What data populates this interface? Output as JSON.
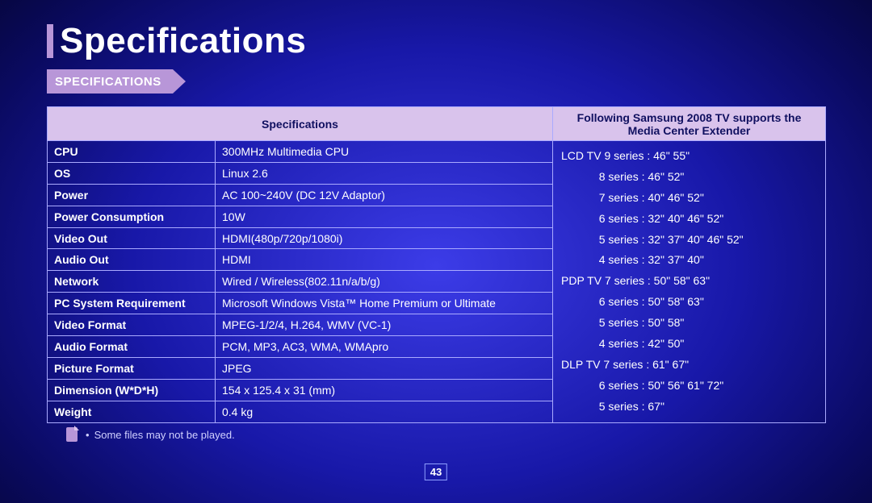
{
  "page": {
    "title": "Specifications",
    "ribbon": "SPECIFICATIONS",
    "footnote": "Some files may not be played.",
    "page_number": "43"
  },
  "headers": {
    "spec": "Specifications",
    "tv": "Following Samsung 2008 TV supports the Media Center Extender"
  },
  "specs": [
    {
      "label": "CPU",
      "value": "300MHz Multimedia CPU"
    },
    {
      "label": "OS",
      "value": "Linux 2.6"
    },
    {
      "label": "Power",
      "value": "AC 100~240V (DC 12V Adaptor)"
    },
    {
      "label": "Power Consumption",
      "value": "10W"
    },
    {
      "label": "Video Out",
      "value": "HDMI(480p/720p/1080i)"
    },
    {
      "label": "Audio Out",
      "value": "HDMI"
    },
    {
      "label": "Network",
      "value": "Wired / Wireless(802.11n/a/b/g)"
    },
    {
      "label": "PC System Requirement",
      "value": "Microsoft Windows Vista™ Home Premium or Ultimate"
    },
    {
      "label": "Video Format",
      "value": "MPEG-1/2/4, H.264, WMV (VC-1)"
    },
    {
      "label": "Audio Format",
      "value": "PCM, MP3, AC3, WMA, WMApro"
    },
    {
      "label": "Picture Format",
      "value": "JPEG"
    },
    {
      "label": "Dimension (W*D*H)",
      "value": "154 x 125.4 x 31 (mm)"
    },
    {
      "label": "Weight",
      "value": "0.4 kg"
    }
  ],
  "tv_support": [
    "LCD TV 9 series : 46\" 55\"",
    "            8 series : 46\" 52\"",
    "            7 series : 40\" 46\" 52\"",
    "            6 series : 32\" 40\" 46\" 52\"",
    "            5 series : 32\" 37\" 40\" 46\" 52\"",
    "            4 series : 32\" 37\" 40\"",
    "PDP TV 7 series : 50\" 58\" 63\"",
    "            6 series : 50\" 58\" 63\"",
    "            5 series : 50\" 58\"",
    "            4 series : 42\" 50\"",
    "DLP TV 7 series : 61\" 67\"",
    "            6 series : 50\" 56\" 61\" 72\"",
    "            5 series : 67\""
  ],
  "colors": {
    "accent": "#b896d8",
    "header_bg": "#d9c3ec",
    "border": "#aaaaff",
    "bg_gradient_inner": "#3c3ce8",
    "bg_gradient_outer": "#020218"
  }
}
